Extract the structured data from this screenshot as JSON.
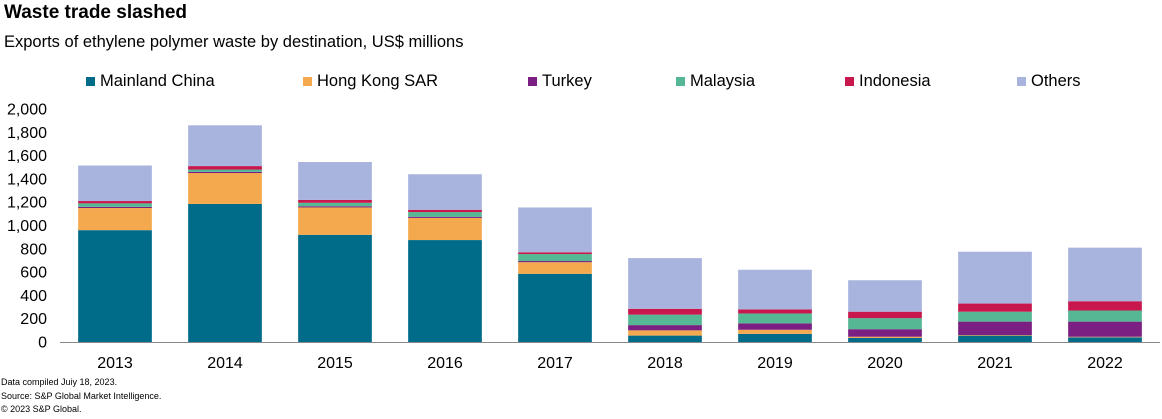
{
  "header": {
    "title": "Waste trade slashed",
    "subtitle": "Exports of ethylene polymer waste by destination, US$ millions"
  },
  "footnotes": [
    "Data compiled Juiy 18, 2023.",
    "Source: S&P Global Market Intelligence.",
    "© 2023 S&P Global."
  ],
  "chart_data": {
    "type": "bar",
    "stacked": true,
    "title": "Waste trade slashed",
    "subtitle": "Exports of ethylene polymer waste by destination, US$ millions",
    "xlabel": "",
    "ylabel": "",
    "ylim": [
      0,
      2000
    ],
    "yticks": [
      0,
      200,
      400,
      600,
      800,
      1000,
      1200,
      1400,
      1600,
      1800,
      2000
    ],
    "ytick_labels": [
      "0",
      "200",
      "400",
      "600",
      "800",
      "1,000",
      "1,200",
      "1,400",
      "1,600",
      "1,800",
      "2,000"
    ],
    "grid": false,
    "legend_position": "top",
    "categories": [
      "2013",
      "2014",
      "2015",
      "2016",
      "2017",
      "2018",
      "2019",
      "2020",
      "2021",
      "2022"
    ],
    "series": [
      {
        "name": "Mainland China",
        "color": "#006c8a",
        "values": [
          960,
          1185,
          920,
          875,
          585,
          55,
          70,
          35,
          55,
          40
        ]
      },
      {
        "name": "Hong Kong SAR",
        "color": "#f4a94e",
        "values": [
          190,
          265,
          235,
          190,
          100,
          45,
          35,
          10,
          5,
          5
        ]
      },
      {
        "name": "Turkey",
        "color": "#7b2082",
        "values": [
          10,
          10,
          10,
          10,
          10,
          45,
          55,
          65,
          115,
          130
        ]
      },
      {
        "name": "Malaysia",
        "color": "#55b794",
        "values": [
          30,
          20,
          30,
          40,
          60,
          90,
          85,
          95,
          85,
          95
        ]
      },
      {
        "name": "Indonesia",
        "color": "#c8174c",
        "values": [
          20,
          30,
          25,
          20,
          15,
          50,
          35,
          55,
          70,
          80
        ]
      },
      {
        "name": "Others",
        "color": "#a9b4de",
        "values": [
          305,
          350,
          325,
          305,
          385,
          435,
          340,
          270,
          445,
          460
        ]
      }
    ]
  }
}
